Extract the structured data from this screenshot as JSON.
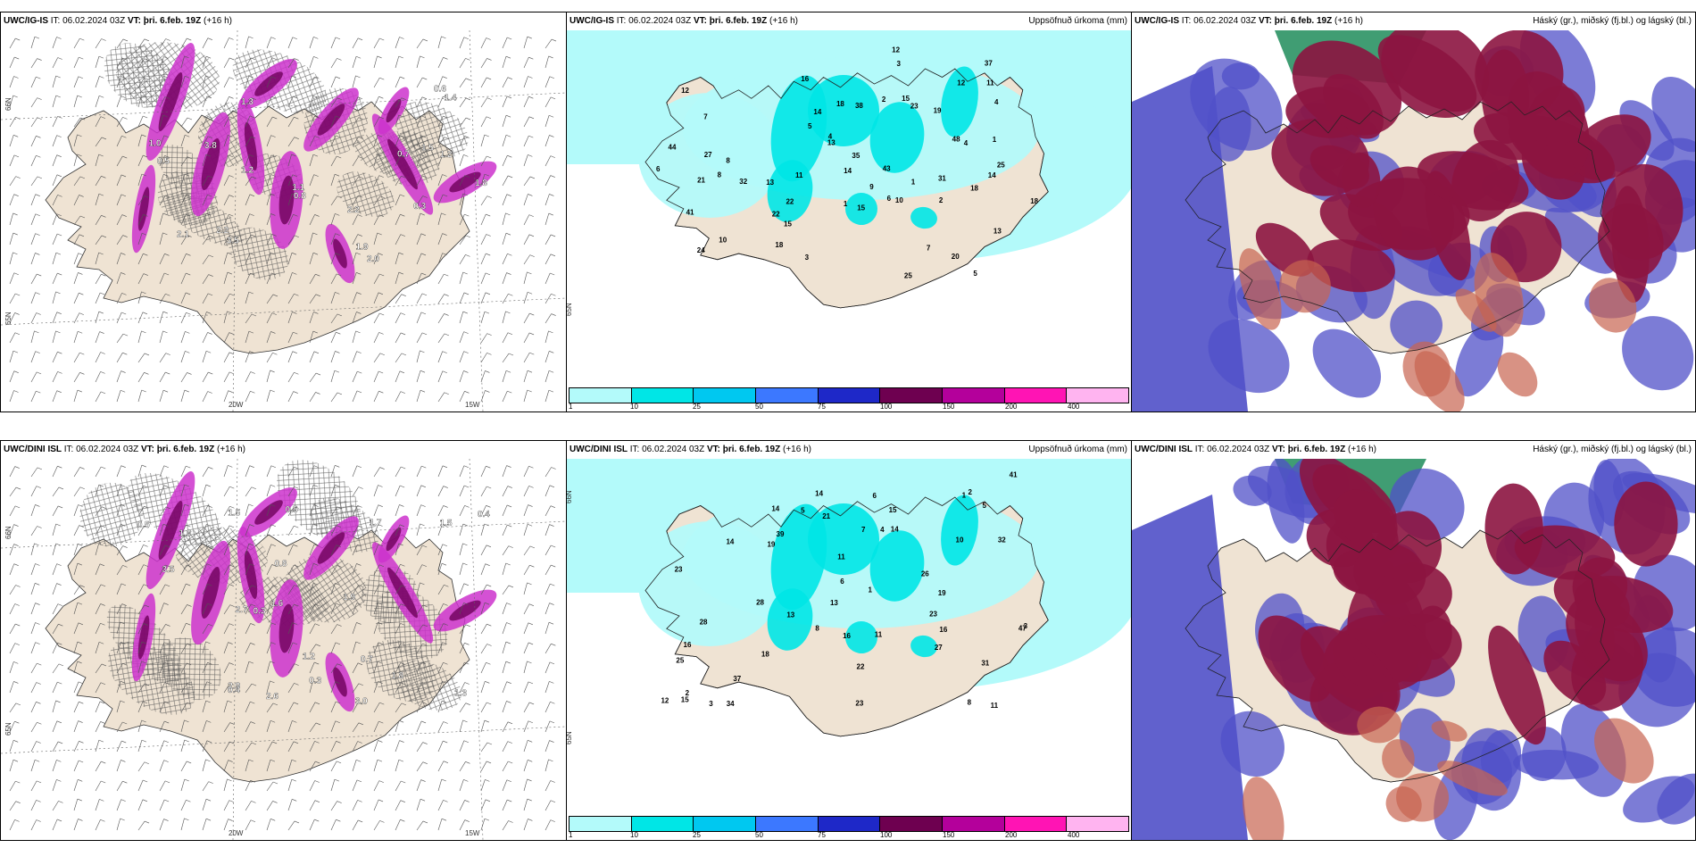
{
  "panels": {
    "p1": {
      "model": "UWC/IG-IS",
      "it_label": "IT:",
      "it": "06.02.2024 03Z",
      "vt_label": "VT:",
      "vt": "þri. 6.feb. 19Z",
      "lead": "(+16 h)",
      "right": ""
    },
    "p2": {
      "model": "UWC/IG-IS",
      "it_label": "IT:",
      "it": "06.02.2024 03Z",
      "vt_label": "VT:",
      "vt": "þri. 6.feb. 19Z",
      "lead": "(+16 h)",
      "right": "Uppsöfnuð úrkoma (mm)"
    },
    "p3": {
      "model": "UWC/IG-IS",
      "it_label": "IT:",
      "it": "06.02.2024 03Z",
      "vt_label": "VT:",
      "vt": "þri. 6.feb. 19Z",
      "lead": "(+16 h)",
      "right": "Háský (gr.), miðský (fj.bl.) og lágský (bl.)"
    },
    "p4": {
      "model": "UWC/DINI ISL",
      "it_label": "IT:",
      "it": "06.02.2024 03Z",
      "vt_label": "VT:",
      "vt": "þri. 6.feb. 19Z",
      "lead": "(+16 h)",
      "right": ""
    },
    "p5": {
      "model": "UWC/DINI ISL",
      "it_label": "IT:",
      "it": "06.02.2024 03Z",
      "vt_label": "VT:",
      "vt": "þri. 6.feb. 19Z",
      "lead": "(+16 h)",
      "right": "Uppsöfnuð úrkoma (mm)"
    },
    "p6": {
      "model": "UWC/DINI ISL",
      "it_label": "IT:",
      "it": "06.02.2024 03Z",
      "vt_label": "VT:",
      "vt": "þri. 6.feb. 19Z",
      "lead": "(+16 h)",
      "right": "Háský (gr.), miðský (fj.bl.) og lágský (bl.)"
    }
  },
  "grid_labels": {
    "lon": [
      "20W",
      "15W"
    ],
    "lat": [
      "66N",
      "65N",
      "64N"
    ]
  },
  "legend": {
    "ticks": [
      "1",
      "10",
      "25",
      "50",
      "75",
      "100",
      "150",
      "200",
      "400"
    ],
    "colors": [
      "#b3fafa",
      "#00e6e6",
      "#00c8f0",
      "#3c78ff",
      "#1e28c8",
      "#6e0050",
      "#b4009b",
      "#ff14b4",
      "#ffb4f0"
    ]
  },
  "precip_labels": {
    "top": [
      "5",
      "8",
      "6",
      "12",
      "13",
      "7",
      "10",
      "13",
      "19",
      "18",
      "23",
      "20",
      "15",
      "16",
      "43",
      "41",
      "31",
      "35",
      "44",
      "24",
      "37",
      "38",
      "48",
      "18",
      "25",
      "27",
      "32",
      "14",
      "13",
      "11",
      "10",
      "21",
      "22",
      "15",
      "14",
      "18",
      "14",
      "7",
      "12",
      "25",
      "22",
      "15",
      "18",
      "12",
      "11",
      "8",
      "4",
      "3",
      "2",
      "1",
      "1",
      "1",
      "2",
      "4",
      "5",
      "6",
      "3",
      "4",
      "9"
    ],
    "bottom": [
      "11",
      "11",
      "16",
      "23",
      "19",
      "13",
      "13",
      "6",
      "8",
      "28",
      "21",
      "14",
      "15",
      "41",
      "31",
      "27",
      "39",
      "37",
      "47",
      "32",
      "22",
      "14",
      "23",
      "34",
      "25",
      "15",
      "16",
      "11",
      "19",
      "10",
      "7",
      "16",
      "14",
      "18",
      "23",
      "26",
      "28",
      "4",
      "3",
      "5",
      "12",
      "6",
      "8",
      "14",
      "2",
      "1",
      "1",
      "2",
      "3",
      "5"
    ]
  },
  "cloud_labels": {
    "top": [
      "2.0",
      "1.3",
      "2.2",
      "3.8",
      "1.5",
      "1.9",
      "1.8",
      "1.2",
      "0.8",
      "3.5",
      "2.1",
      "1.0",
      "1.1",
      "2.2",
      "0.7",
      "0.6",
      "0.5",
      "1.4",
      "0.3",
      "1.2"
    ],
    "bottom": [
      "2.6",
      "3.0",
      "2.9",
      "1.8",
      "1.5",
      "1.0",
      "2.7",
      "1.3",
      "0.5",
      "0.8",
      "1.5",
      "0.3",
      "1.6",
      "1.2",
      "1.7",
      "1.9",
      "3.5",
      "0.4",
      "0.3",
      "0.5",
      "0.7",
      "0.4"
    ]
  },
  "colors": {
    "land": "#efe3d3",
    "precip_light": "#b3fafa",
    "precip_mid": "#00e6e6",
    "magenta": "#cc33cc",
    "deep_magenta": "#6e005a",
    "cloud_blue": "#5050c8",
    "cloud_red": "#8c1440",
    "cloud_green": "#1e8c5a"
  }
}
